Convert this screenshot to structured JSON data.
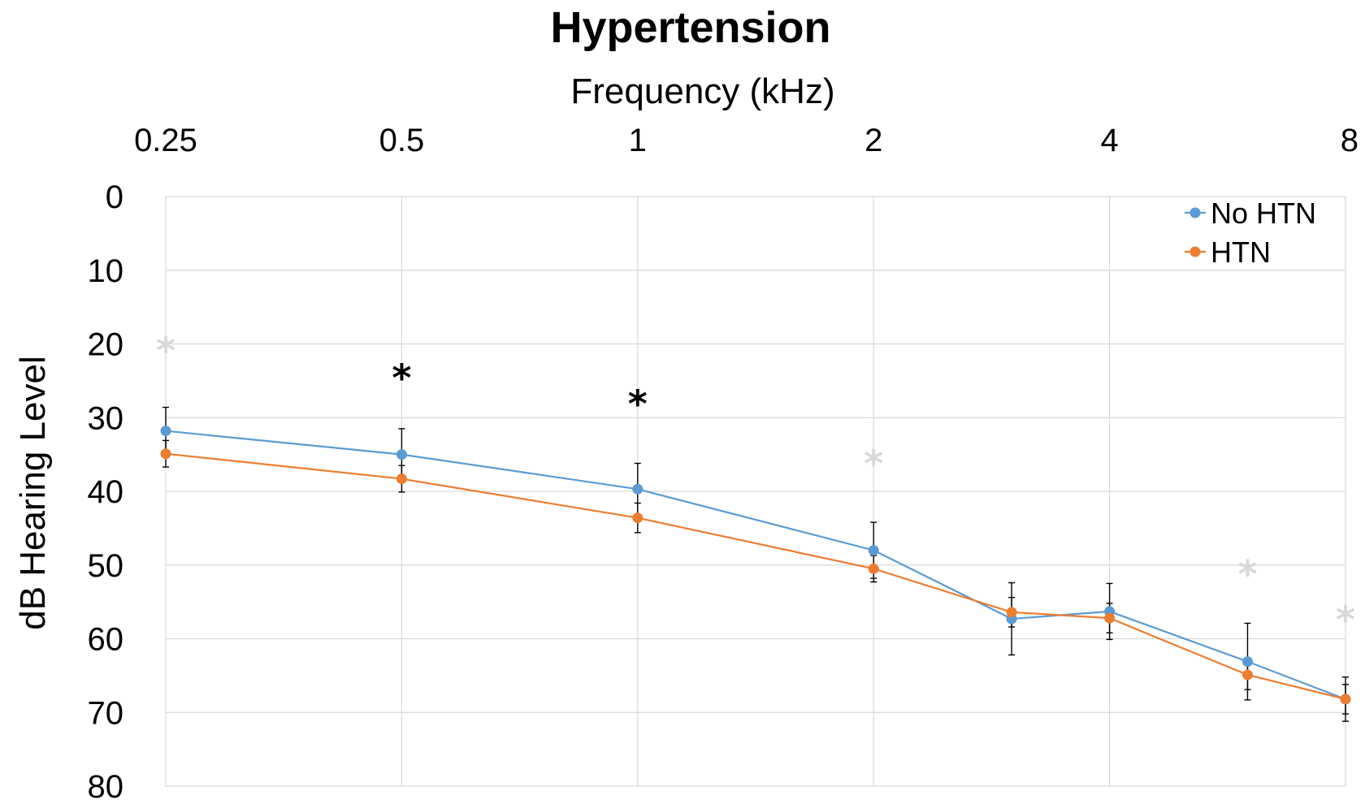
{
  "chart_data": {
    "type": "line",
    "title": "Hypertension",
    "xlabel": "Frequency (kHz)",
    "ylabel": "dB Hearing Level",
    "x_axis_position": "top",
    "x_scale": "log2",
    "y_inverted": true,
    "ylim": [
      0,
      80
    ],
    "yticks": [
      "0",
      "10",
      "20",
      "30",
      "40",
      "50",
      "60",
      "70",
      "80"
    ],
    "xticks": [
      {
        "value": 0.25,
        "label": "0.25"
      },
      {
        "value": 0.5,
        "label": "0.5"
      },
      {
        "value": 1,
        "label": "1"
      },
      {
        "value": 2,
        "label": "2"
      },
      {
        "value": 4,
        "label": "4"
      },
      {
        "value": 8,
        "label": "8"
      }
    ],
    "x": [
      0.25,
      0.5,
      1,
      2,
      3,
      4,
      6,
      8
    ],
    "grid": true,
    "legend_position": "top-right",
    "series": [
      {
        "name": "No HTN",
        "color": "#5b9bd5",
        "values": [
          31.8,
          35.0,
          39.7,
          48.0,
          57.3,
          56.3,
          63.1,
          68.2
        ],
        "error": [
          3.2,
          3.5,
          3.5,
          3.8,
          4.9,
          3.8,
          5.2,
          3.0
        ]
      },
      {
        "name": "HTN",
        "color": "#ed7d31",
        "values": [
          34.9,
          38.3,
          43.6,
          50.5,
          56.4,
          57.2,
          64.9,
          68.2
        ],
        "error": [
          1.8,
          1.8,
          2.0,
          1.8,
          2.0,
          2.0,
          2.0,
          2.0
        ]
      }
    ],
    "annotations": [
      {
        "text": "*",
        "x": 0.5,
        "y": 24.2,
        "color": "#000000"
      },
      {
        "text": "*",
        "x": 1,
        "y": 27.7,
        "color": "#000000"
      },
      {
        "text": "*",
        "x": 0.25,
        "y": 20.5,
        "color": "#d9d9d9"
      },
      {
        "text": "*",
        "x": 2,
        "y": 35.8,
        "color": "#d9d9d9"
      },
      {
        "text": "*",
        "x": 6,
        "y": 50.8,
        "color": "#d9d9d9"
      },
      {
        "text": "*",
        "x": 8,
        "y": 57.0,
        "color": "#d9d9d9"
      }
    ]
  }
}
